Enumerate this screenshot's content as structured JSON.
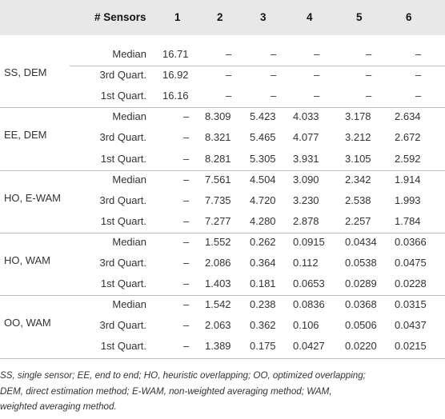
{
  "header": {
    "sensors_label": "# Sensors",
    "cols": [
      "1",
      "2",
      "3",
      "4",
      "5",
      "6"
    ]
  },
  "groups": [
    {
      "label": "SS, DEM",
      "rows": [
        {
          "stat": "Median",
          "values": [
            "16.71",
            "–",
            "–",
            "–",
            "–",
            "–"
          ]
        },
        {
          "stat": "3rd Quart.",
          "values": [
            "16.92",
            "–",
            "–",
            "–",
            "–",
            "–"
          ]
        },
        {
          "stat": "1st Quart.",
          "values": [
            "16.16",
            "–",
            "–",
            "–",
            "–",
            "–"
          ]
        }
      ]
    },
    {
      "label": "EE, DEM",
      "rows": [
        {
          "stat": "Median",
          "values": [
            "–",
            "8.309",
            "5.423",
            "4.033",
            "3.178",
            "2.634"
          ]
        },
        {
          "stat": "3rd Quart.",
          "values": [
            "–",
            "8.321",
            "5.465",
            "4.077",
            "3.212",
            "2.672"
          ]
        },
        {
          "stat": "1st Quart.",
          "values": [
            "–",
            "8.281",
            "5.305",
            "3.931",
            "3.105",
            "2.592"
          ]
        }
      ]
    },
    {
      "label": "HO, E-WAM",
      "rows": [
        {
          "stat": "Median",
          "values": [
            "–",
            "7.561",
            "4.504",
            "3.090",
            "2.342",
            "1.914"
          ]
        },
        {
          "stat": "3rd Quart.",
          "values": [
            "–",
            "7.735",
            "4.720",
            "3.230",
            "2.538",
            "1.993"
          ]
        },
        {
          "stat": "1st Quart.",
          "values": [
            "–",
            "7.277",
            "4.280",
            "2.878",
            "2.257",
            "1.784"
          ]
        }
      ]
    },
    {
      "label": "HO, WAM",
      "rows": [
        {
          "stat": "Median",
          "values": [
            "–",
            "1.552",
            "0.262",
            "0.0915",
            "0.0434",
            "0.0366"
          ]
        },
        {
          "stat": "3rd Quart.",
          "values": [
            "–",
            "2.086",
            "0.364",
            "0.112",
            "0.0538",
            "0.0475"
          ]
        },
        {
          "stat": "1st Quart.",
          "values": [
            "–",
            "1.403",
            "0.181",
            "0.0653",
            "0.0289",
            "0.0228"
          ]
        }
      ]
    },
    {
      "label": "OO, WAM",
      "rows": [
        {
          "stat": "Median",
          "values": [
            "–",
            "1.542",
            "0.238",
            "0.0836",
            "0.0368",
            "0.0315"
          ]
        },
        {
          "stat": "3rd Quart.",
          "values": [
            "–",
            "2.063",
            "0.362",
            "0.106",
            "0.0506",
            "0.0437"
          ]
        },
        {
          "stat": "1st Quart.",
          "values": [
            "–",
            "1.389",
            "0.175",
            "0.0427",
            "0.0220",
            "0.0215"
          ]
        }
      ]
    }
  ],
  "footnote": [
    "SS, single sensor; EE, end to end; HO, heuristic overlapping; OO, optimized overlapping;",
    "DEM, direct estimation method; E-WAM, non-weighted averaging method; WAM,",
    "weighted averaging method."
  ]
}
